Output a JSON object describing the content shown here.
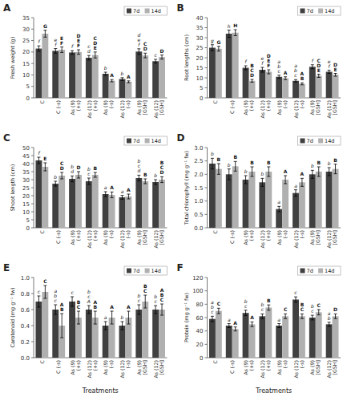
{
  "chart_data": [
    {
      "type": "bar",
      "title": "A",
      "y_label": "Fresh weight (g)",
      "categories": [
        "C",
        "C (-s)",
        "As (9)\n(+s)",
        "As (12)\n(+s)",
        "As (9)\n(-s)",
        "As (12)\n(-s)",
        "As (9)\n[GSH]",
        "As (12)\n[GSH]"
      ],
      "ylim": [
        0,
        35
      ],
      "yticks": [
        0,
        5,
        10,
        15,
        20,
        25,
        30,
        35
      ],
      "grid": false,
      "legend": "upper right",
      "series": [
        {
          "name": "7d",
          "color": "#404040",
          "values": [
            21.5,
            20.5,
            19.8,
            17.5,
            10.5,
            8.2,
            20.2,
            16.0
          ],
          "errors": [
            1.2,
            1.0,
            0.8,
            1.0,
            0.7,
            0.6,
            1.2,
            0.8
          ],
          "annotations": [
            "f",
            "e\nf",
            "f",
            "c\nd",
            "b",
            "b",
            "d\ne\nf",
            "c"
          ]
        },
        {
          "name": "14d",
          "color": "#b0b0b0",
          "values": [
            28.0,
            21.0,
            20.0,
            18.7,
            7.5,
            7.0,
            18.5,
            17.8
          ],
          "errors": [
            1.5,
            1.2,
            1.0,
            1.3,
            0.5,
            0.4,
            1.0,
            0.9
          ],
          "annotations": [
            "G",
            "E\nF",
            "D\nE\nF",
            "C\nD\nE",
            "A",
            "A",
            "C\nD",
            "D"
          ]
        }
      ]
    },
    {
      "type": "bar",
      "title": "B",
      "y_label": "Root lengths (cm)",
      "categories": [
        "C",
        "C (-s)",
        "As (9)\n(+s)",
        "As (12)\n(+s)",
        "As (9)\n(-s)",
        "As (12)\n(-s)",
        "As (9)\n[GSH]",
        "As (12)\n[GSH]"
      ],
      "ylim": [
        0,
        40
      ],
      "yticks": [
        0,
        5,
        10,
        15,
        20,
        25,
        30,
        35,
        40
      ],
      "grid": false,
      "legend": "upper right",
      "series": [
        {
          "name": "7d",
          "color": "#404040",
          "values": [
            25.0,
            32.0,
            15.0,
            14.0,
            10.5,
            8.5,
            15.5,
            13.0
          ],
          "errors": [
            1.5,
            1.8,
            1.0,
            1.2,
            0.8,
            0.6,
            1.0,
            0.8
          ],
          "annotations": [
            "g",
            "h",
            "f",
            "e\nf",
            "a\nb\nc",
            "a\nb\nc",
            "f",
            "e\nf"
          ]
        },
        {
          "name": "14d",
          "color": "#b0b0b0",
          "values": [
            24.5,
            32.5,
            8.5,
            13.0,
            9.8,
            7.0,
            11.0,
            11.5
          ],
          "errors": [
            1.2,
            1.5,
            0.7,
            1.0,
            0.7,
            0.5,
            0.8,
            0.7
          ],
          "annotations": [
            "G",
            "H",
            "B\nC\nD",
            "D\nE\nF",
            "A",
            "A\nB",
            "C\nD\nE",
            "D\nE"
          ]
        }
      ]
    },
    {
      "type": "bar",
      "title": "C",
      "y_label": "Shoot length (cm)",
      "categories": [
        "C",
        "C (-s)",
        "As (9)\n(+s)",
        "As (12)\n(+s)",
        "As (9)\n(-s)",
        "As (12)\n(-s)",
        "As (9)\n[GSH]",
        "As (12)\n[GSH]"
      ],
      "ylim": [
        0,
        50
      ],
      "yticks": [
        0,
        5,
        10,
        15,
        20,
        25,
        30,
        35,
        40,
        45,
        50
      ],
      "grid": false,
      "legend": "upper right",
      "series": [
        {
          "name": "7d",
          "color": "#404040",
          "values": [
            42.0,
            27.5,
            30.5,
            29.0,
            21.0,
            19.0,
            31.0,
            28.5
          ],
          "errors": [
            2.0,
            1.5,
            1.8,
            2.0,
            1.5,
            1.2,
            1.8,
            1.5
          ],
          "annotations": [
            "f",
            "b",
            "b\nd",
            "b\nc",
            "a",
            "a",
            "b\nc\nd",
            "b"
          ]
        },
        {
          "name": "14d",
          "color": "#b0b0b0",
          "values": [
            38.0,
            32.5,
            33.0,
            33.0,
            20.5,
            19.5,
            29.0,
            30.0
          ],
          "errors": [
            2.5,
            2.0,
            2.0,
            1.5,
            1.8,
            1.5,
            1.5,
            1.8
          ],
          "annotations": [
            "E",
            "C\nD",
            "D",
            "B",
            "A",
            "A",
            "B",
            "B\nC\nD"
          ]
        }
      ]
    },
    {
      "type": "bar",
      "title": "D",
      "y_label": "Total chlorophyll (mg g⁻¹ fw)",
      "categories": [
        "C",
        "C (-s)",
        "As (9)\n(+s)",
        "As (12)\n(+s)",
        "As (9)\n(-s)",
        "As (12)\n(-s)",
        "As (9)\n[GSH]",
        "As (12)\n[GSH]"
      ],
      "ylim": [
        0,
        3.0
      ],
      "yticks": [
        {
          "value": 0,
          "label": "0.0"
        },
        0.5,
        {
          "value": 1.0,
          "label": "1.0"
        },
        1.5,
        {
          "value": 2.0,
          "label": "2.0"
        },
        2.5,
        {
          "value": 3.0,
          "label": "3.0"
        }
      ],
      "grid": false,
      "legend": "upper right",
      "series": [
        {
          "name": "7d",
          "color": "#404040",
          "values": [
            2.4,
            2.0,
            1.8,
            1.7,
            0.7,
            1.3,
            2.0,
            2.1
          ],
          "errors": [
            0.2,
            0.2,
            0.15,
            0.15,
            0.1,
            0.12,
            0.15,
            0.15
          ],
          "annotations": [
            "b",
            "b",
            "b",
            "b",
            "a",
            "a",
            "b",
            "b"
          ]
        },
        {
          "name": "14d",
          "color": "#b0b0b0",
          "values": [
            2.2,
            2.3,
            2.1,
            2.1,
            1.8,
            1.7,
            2.1,
            2.2
          ],
          "errors": [
            0.2,
            0.18,
            0.18,
            0.18,
            0.15,
            0.15,
            0.18,
            0.18
          ],
          "annotations": [
            "B",
            "B",
            "B",
            "B",
            "A",
            "A",
            "B",
            "B"
          ]
        }
      ]
    },
    {
      "type": "bar",
      "title": "E",
      "y_label": "Carotenoid (mg g⁻¹ fw)",
      "x_label": "Treatments",
      "categories": [
        "C",
        "C (-s)",
        "As (9)\n(+s)",
        "As (12)\n(+s)",
        "As (9)\n(-s)",
        "As (12)\n(-s)",
        "As (9)\n[GSH]",
        "As (12)\n[GSH]"
      ],
      "ylim": [
        0,
        1.0
      ],
      "yticks": [
        {
          "value": 0,
          "label": "0.0"
        },
        0.2,
        0.4,
        0.6,
        0.8,
        {
          "value": 1.0,
          "label": "1.0"
        }
      ],
      "grid": false,
      "legend": "upper right",
      "series": [
        {
          "name": "7d",
          "color": "#404040",
          "values": [
            0.7,
            0.6,
            0.7,
            0.6,
            0.4,
            0.4,
            0.6,
            0.6
          ],
          "errors": [
            0.07,
            0.06,
            0.06,
            0.05,
            0.05,
            0.05,
            0.06,
            0.05
          ],
          "annotations": [
            "c",
            "a\nb\nc",
            "c",
            "b\nc\nA",
            "a",
            "b",
            "b\nc",
            "b\nc"
          ]
        },
        {
          "name": "14d",
          "color": "#b0b0b0",
          "values": [
            0.82,
            0.4,
            0.5,
            0.5,
            0.5,
            0.5,
            0.7,
            0.6
          ],
          "errors": [
            0.08,
            0.15,
            0.08,
            0.08,
            0.08,
            0.08,
            0.08,
            0.07
          ],
          "annotations": [
            "C",
            "A\nB",
            "B\nC",
            "A\nB",
            "A",
            "A",
            "B\nC",
            "A\nB\nC"
          ]
        }
      ]
    },
    {
      "type": "bar",
      "title": "F",
      "y_label": "Protein (mg g⁻¹ fw)",
      "x_label": "Treatments",
      "categories": [
        "C",
        "C (-s)",
        "As (9)\n(+s)",
        "As (12)\n(+s)",
        "As (9)\n(-s)",
        "As (12)\n(-s)",
        "As (9)\n[GSH]",
        "As (12)\n[GSH]"
      ],
      "ylim": [
        0,
        120
      ],
      "yticks": [
        0,
        20,
        40,
        60,
        80,
        100,
        120
      ],
      "grid": false,
      "legend": "upper right",
      "series": [
        {
          "name": "7d",
          "color": "#404040",
          "values": [
            58.0,
            48.0,
            67.0,
            62.0,
            48.0,
            87.0,
            60.0,
            50.0
          ],
          "errors": [
            4.0,
            3.0,
            4.0,
            3.5,
            3.0,
            4.0,
            3.5,
            3.0
          ],
          "annotations": [
            "a\nb\nc",
            "a",
            "b\nc",
            "b\nc",
            "a",
            "c",
            "b\nc",
            "a\nb"
          ]
        },
        {
          "name": "14d",
          "color": "#b0b0b0",
          "values": [
            70.0,
            43.0,
            50.0,
            75.0,
            62.0,
            62.0,
            68.0,
            62.0
          ],
          "errors": [
            4.0,
            3.0,
            3.5,
            4.0,
            3.5,
            3.5,
            4.0,
            3.5
          ],
          "annotations": [
            "C",
            "A",
            "A",
            "B",
            "C",
            "B\nC",
            "C",
            "D"
          ]
        }
      ]
    }
  ]
}
